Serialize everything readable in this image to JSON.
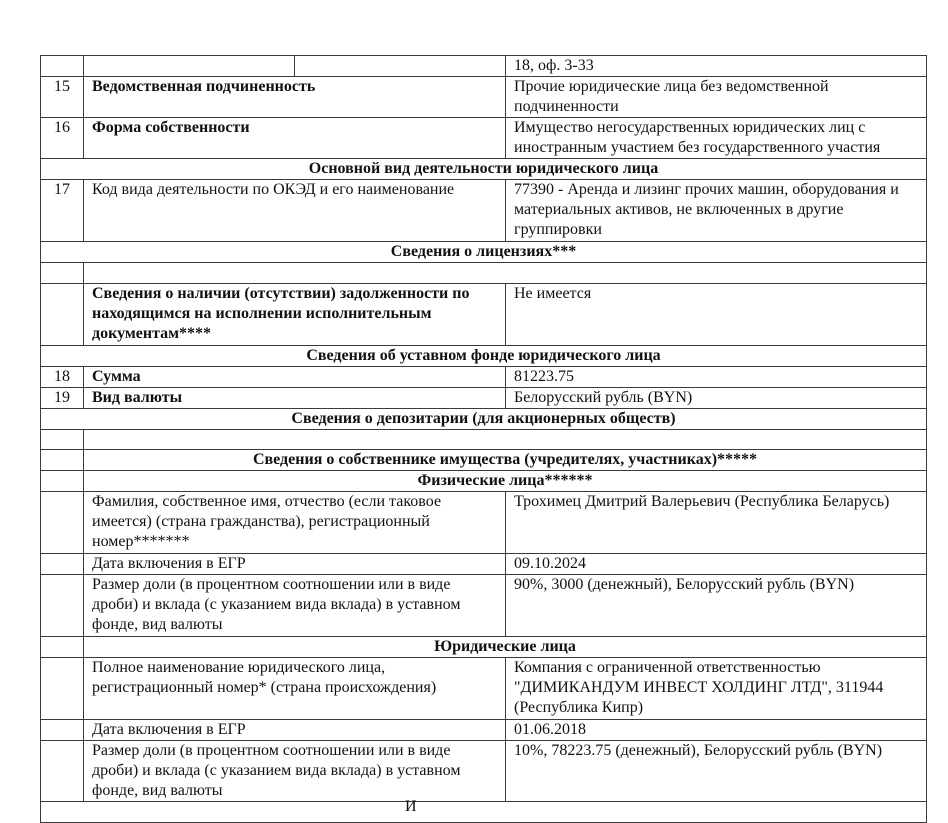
{
  "rows": {
    "top": {
      "value": "18, оф. 3-33"
    },
    "r15": {
      "num": "15",
      "label": "Ведомственная подчиненность",
      "value": "Прочие юридические лица без ведомственной подчиненности"
    },
    "r16": {
      "num": "16",
      "label": "Форма собственности",
      "value": "Имущество негосударственных юридических лиц с иностранным участием без государственного участия"
    },
    "main_activity_header": "Основной вид деятельности юридического лица",
    "r17": {
      "num": "17",
      "label": "Код вида деятельности по ОКЭД и его наименование",
      "value": "77390 - Аренда и лизинг прочих машин, оборудования и материальных активов, не включенных в другие группировки"
    },
    "licenses_header": "Сведения о лицензиях***",
    "debt": {
      "label": "Сведения о наличии (отсутствии) задолженности по находящимся на исполнении исполнительным документам****",
      "value": "Не имеется"
    },
    "charter_header": "Сведения об уставном фонде юридического лица",
    "r18": {
      "num": "18",
      "label": "Сумма",
      "value": "81223.75"
    },
    "r19": {
      "num": "19",
      "label": "Вид валюты",
      "value": "Белорусский рубль (BYN)"
    },
    "depositary_header": "Сведения о депозитарии (для акционерных обществ)",
    "owner_header": "Сведения о собственнике имущества (учредителях, участниках)*****",
    "individuals": {
      "header": "Физические лица******",
      "name_label": "Фамилия, собственное имя, отчество (если таковое имеется) (страна гражданства), регистрационный номер*******",
      "name_value": "Трохимец Дмитрий Валерьевич (Республика Беларусь)",
      "date_label": "Дата включения в ЕГР",
      "date_value": "09.10.2024",
      "share_label": "Размер доли (в процентном соотношении или в виде дроби) и вклада (с указанием вида вклада) в уставном фонде, вид валюты",
      "share_value": "90%, 3000 (денежный), Белорусский рубль (BYN)"
    },
    "legal_entities": {
      "header": "Юридические лица",
      "name_label": "Полное наименование юридического лица, регистрационный номер* (страна происхождения)",
      "name_value": "Компания с ограниченной ответственностью \"ДИМИКАНДУМ ИНВЕСТ ХОЛДИНГ ЛТД\", 311944 (Республика Кипр)",
      "date_label": "Дата включения в ЕГР",
      "date_value": "01.06.2018",
      "share_label": "Размер доли (в процентном соотношении или в виде дроби) и вклада (с указанием вида вклада) в уставном фонде, вид валюты",
      "share_value": "10%, 78223.75 (денежный), Белорусский рубль (BYN)"
    },
    "cut_off_text": "И"
  }
}
